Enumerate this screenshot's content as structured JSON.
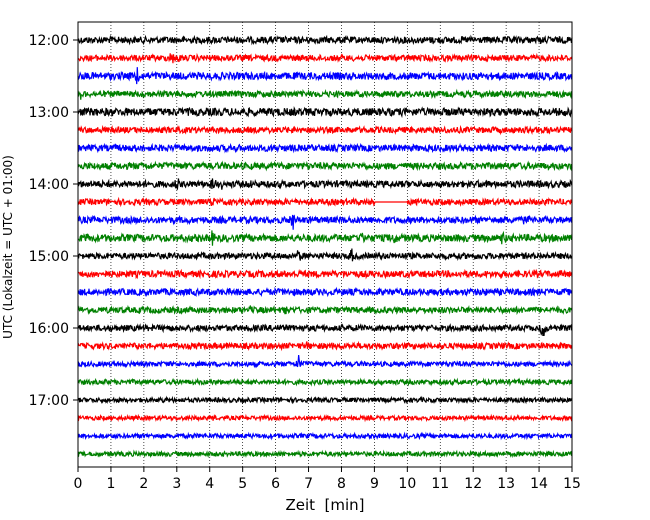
{
  "chart_data": {
    "type": "line",
    "subtype": "helicorder",
    "title": "",
    "xlabel": "Zeit  [min]",
    "ylabel": "UTC (Lokalzeit = UTC + 01:00)",
    "xlim": [
      0,
      15
    ],
    "x_ticks": [
      "0",
      "1",
      "2",
      "3",
      "4",
      "5",
      "6",
      "7",
      "8",
      "9",
      "10",
      "11",
      "12",
      "13",
      "14",
      "15"
    ],
    "y_tick_labels": [
      "12:00",
      "13:00",
      "14:00",
      "15:00",
      "16:00",
      "17:00"
    ],
    "grid": {
      "x": "dotted",
      "y": false
    },
    "trace_colors": [
      "#000000",
      "#ff0000",
      "#0000ff",
      "#008000"
    ],
    "traces": [
      {
        "start": "12:00",
        "color": "#000000",
        "noise": 0.22,
        "events": [
          {
            "t": 14.1,
            "amp": 0.5
          }
        ]
      },
      {
        "start": "12:15",
        "color": "#ff0000",
        "noise": 0.2,
        "events": [
          {
            "t": 2.85,
            "amp": 1.4
          },
          {
            "t": 3.0,
            "amp": 1.2
          }
        ]
      },
      {
        "start": "12:30",
        "color": "#0000ff",
        "noise": 0.24,
        "events": [
          {
            "t": 1.8,
            "amp": 1.6
          }
        ]
      },
      {
        "start": "12:45",
        "color": "#008000",
        "noise": 0.2,
        "events": [
          {
            "t": 0.1,
            "amp": 0.9
          }
        ]
      },
      {
        "start": "13:00",
        "color": "#000000",
        "noise": 0.26,
        "events": []
      },
      {
        "start": "13:15",
        "color": "#ff0000",
        "noise": 0.2,
        "events": [
          {
            "t": 14.0,
            "amp": 0.9
          }
        ]
      },
      {
        "start": "13:30",
        "color": "#0000ff",
        "noise": 0.22,
        "events": []
      },
      {
        "start": "13:45",
        "color": "#008000",
        "noise": 0.22,
        "events": []
      },
      {
        "start": "14:00",
        "color": "#000000",
        "noise": 0.22,
        "events": [
          {
            "t": 3.0,
            "amp": 1.0
          },
          {
            "t": 4.1,
            "amp": 1.4
          },
          {
            "t": 4.4,
            "amp": 1.2
          },
          {
            "t": 5.3,
            "amp": 1.1
          },
          {
            "t": 12.0,
            "amp": 0.8
          }
        ]
      },
      {
        "start": "14:15",
        "color": "#ff0000",
        "noise": 0.2,
        "gap": [
          9.0,
          10.0
        ],
        "events": [
          {
            "t": 4.1,
            "amp": 0.8
          },
          {
            "t": 5.4,
            "amp": 0.6
          }
        ]
      },
      {
        "start": "14:30",
        "color": "#0000ff",
        "noise": 0.22,
        "events": [
          {
            "t": 6.5,
            "amp": 2.8
          },
          {
            "t": 13.6,
            "amp": 0.8
          }
        ]
      },
      {
        "start": "14:45",
        "color": "#008000",
        "noise": 0.24,
        "events": [
          {
            "t": 0.3,
            "amp": 0.9
          },
          {
            "t": 4.1,
            "amp": 2.0
          },
          {
            "t": 8.6,
            "amp": 1.4
          },
          {
            "t": 9.6,
            "amp": 1.0
          },
          {
            "t": 12.9,
            "amp": 1.6
          }
        ]
      },
      {
        "start": "15:00",
        "color": "#000000",
        "noise": 0.2,
        "events": [
          {
            "t": 6.7,
            "amp": 1.4
          },
          {
            "t": 8.3,
            "amp": 1.4
          }
        ]
      },
      {
        "start": "15:15",
        "color": "#ff0000",
        "noise": 0.22,
        "events": []
      },
      {
        "start": "15:30",
        "color": "#0000ff",
        "noise": 0.22,
        "events": [
          {
            "t": 14.5,
            "amp": 0.7
          }
        ]
      },
      {
        "start": "15:45",
        "color": "#008000",
        "noise": 0.2,
        "events": [
          {
            "t": 5.2,
            "amp": 0.9
          },
          {
            "t": 6.3,
            "amp": 0.8
          }
        ]
      },
      {
        "start": "16:00",
        "color": "#000000",
        "noise": 0.2,
        "events": [
          {
            "t": 6.0,
            "amp": 0.6
          },
          {
            "t": 14.1,
            "amp": 2.6
          }
        ]
      },
      {
        "start": "16:15",
        "color": "#ff0000",
        "noise": 0.2,
        "events": [
          {
            "t": 1.5,
            "amp": 0.8
          },
          {
            "t": 6.9,
            "amp": 1.0
          }
        ]
      },
      {
        "start": "16:30",
        "color": "#0000ff",
        "noise": 0.16,
        "events": [
          {
            "t": 6.7,
            "amp": 2.0
          }
        ]
      },
      {
        "start": "16:45",
        "color": "#008000",
        "noise": 0.16,
        "events": []
      },
      {
        "start": "17:00",
        "color": "#000000",
        "noise": 0.15,
        "events": [
          {
            "t": 2.6,
            "amp": 0.5
          }
        ]
      },
      {
        "start": "17:15",
        "color": "#ff0000",
        "noise": 0.14,
        "events": [
          {
            "t": 4.1,
            "amp": 0.5
          }
        ]
      },
      {
        "start": "17:30",
        "color": "#0000ff",
        "noise": 0.15,
        "events": []
      },
      {
        "start": "17:45",
        "color": "#008000",
        "noise": 0.15,
        "events": []
      }
    ]
  }
}
